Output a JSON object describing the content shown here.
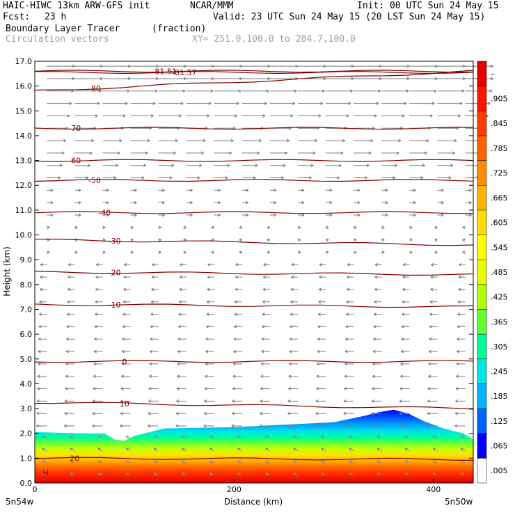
{
  "header": {
    "model": "HAIC-HIWC 13km ARW-GFS init",
    "org": "NCAR/MMM",
    "init": "Init: 00 UTC Sun 24 May 15",
    "fcst_label": "Fcst:",
    "fcst_value": "23 h",
    "valid": "Valid: 23 UTC Sun 24 May 15 (20 LST Sun 24 May 15)",
    "field": "Boundary Layer Tracer",
    "field_units": "(fraction)",
    "vectors": "Circulation vectors",
    "xy": "XY= 251.0,100.0 to 284.7,100.0"
  },
  "chart_data": {
    "type": "heatmap",
    "xlabel": "Distance (km)",
    "ylabel": "Height (km)",
    "xlim": [
      0,
      440
    ],
    "ylim": [
      0.0,
      17.0
    ],
    "x_ticks": [
      "0",
      "200",
      "400"
    ],
    "y_ticks": [
      "0.0",
      "1.0",
      "2.0",
      "3.0",
      "4.0",
      "5.0",
      "6.0",
      "7.0",
      "8.0",
      "9.0",
      "10.0",
      "11.0",
      "12.0",
      "13.0",
      "14.0",
      "15.0",
      "16.0",
      "17.0"
    ],
    "x_endpoints": {
      "left": "5n54w",
      "right": "5n50w"
    },
    "colorbar_labels": [
      ".005",
      ".065",
      ".125",
      ".185",
      ".245",
      ".305",
      ".365",
      ".425",
      ".485",
      ".545",
      ".605",
      ".665",
      ".725",
      ".785",
      ".845",
      ".905",
      "–"
    ],
    "colorbar_colors": [
      "#ffffff",
      "#0000ff",
      "#0064ff",
      "#00b4ff",
      "#00e6e6",
      "#00ff96",
      "#64ff32",
      "#b4ff00",
      "#e6ff00",
      "#ffff00",
      "#ffdc00",
      "#ffb400",
      "#ff8c00",
      "#ff6400",
      "#ff3c00",
      "#ff1400",
      "#e60000"
    ],
    "tracer_top_km": [
      [
        0,
        2.05
      ],
      [
        50,
        2.0
      ],
      [
        70,
        2.0
      ],
      [
        80,
        1.75
      ],
      [
        90,
        1.7
      ],
      [
        100,
        1.9
      ],
      [
        130,
        2.2
      ],
      [
        200,
        2.25
      ],
      [
        250,
        2.35
      ],
      [
        300,
        2.45
      ],
      [
        330,
        2.7
      ],
      [
        345,
        2.85
      ],
      [
        360,
        2.95
      ],
      [
        375,
        2.8
      ],
      [
        390,
        2.5
      ],
      [
        410,
        2.2
      ],
      [
        430,
        2.0
      ],
      [
        440,
        1.75
      ]
    ],
    "temperature_contours": [
      {
        "label": "-81.51",
        "z_km": [
          16.6,
          16.6
        ]
      },
      {
        "label": "-81.57",
        "z_km": [
          16.55,
          16.55
        ]
      },
      {
        "label": "-80",
        "z_km": [
          15.8,
          16.6
        ]
      },
      {
        "label": "-70",
        "z_km": [
          14.3,
          14.3
        ]
      },
      {
        "label": "-60",
        "z_km": [
          13.0,
          13.0
        ]
      },
      {
        "label": "-50",
        "z_km": [
          12.2,
          12.2
        ]
      },
      {
        "label": "-40",
        "z_km": [
          10.9,
          10.9
        ]
      },
      {
        "label": "-30",
        "z_km": [
          9.8,
          9.6
        ]
      },
      {
        "label": "-20",
        "z_km": [
          8.5,
          8.4
        ]
      },
      {
        "label": "-10",
        "z_km": [
          7.2,
          7.1
        ]
      },
      {
        "label": "0",
        "z_km": [
          4.9,
          4.9
        ]
      },
      {
        "label": "10",
        "z_km": [
          3.25,
          3.0
        ]
      },
      {
        "label": "20",
        "z_km": [
          1.0,
          0.95
        ]
      }
    ],
    "extremum_label": "H"
  }
}
